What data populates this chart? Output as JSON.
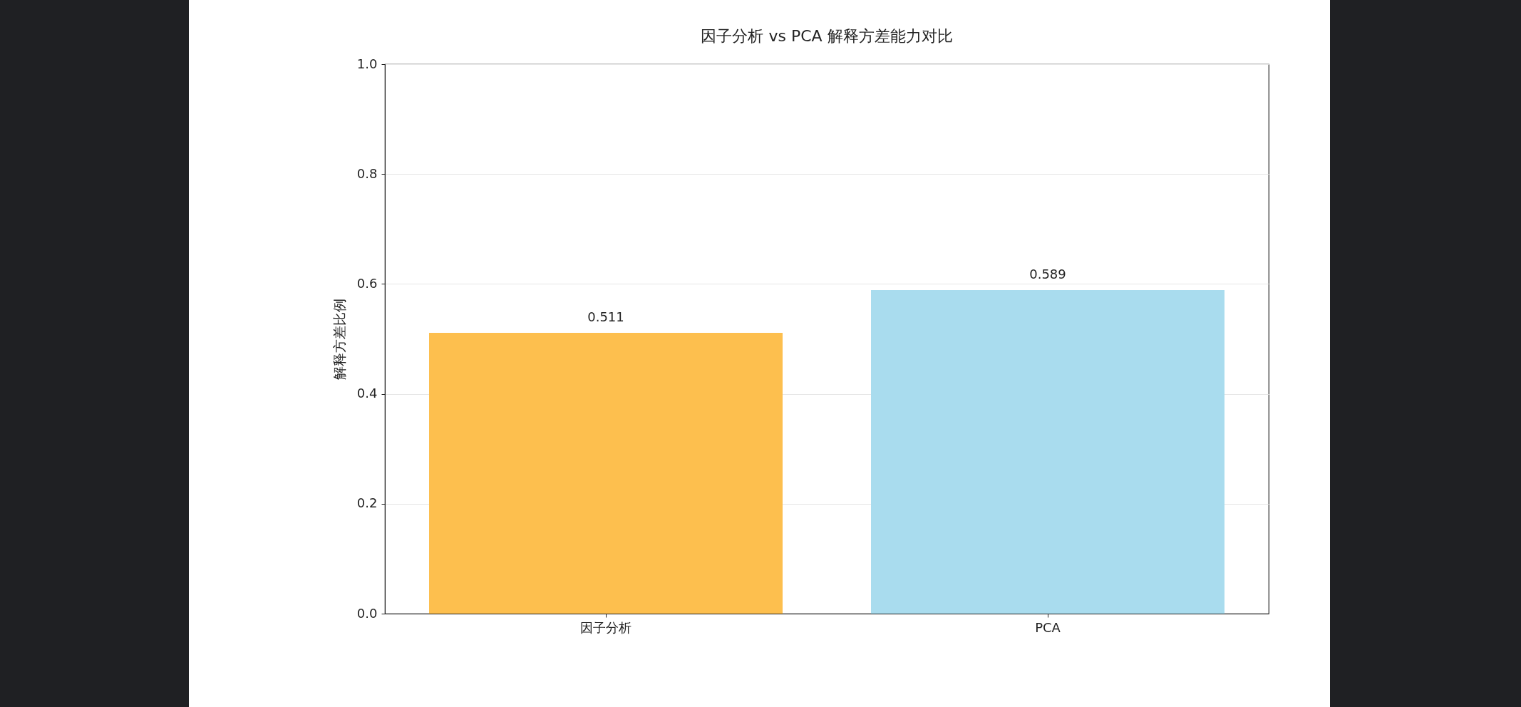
{
  "chart_data": {
    "type": "bar",
    "title": "因子分析 vs PCA 解释方差能力对比",
    "ylabel": "解释方差比例",
    "categories": [
      "因子分析",
      "PCA"
    ],
    "values": [
      0.511,
      0.589
    ],
    "colors": [
      "#fdbf4e",
      "#a9dcee"
    ],
    "ylim": [
      0,
      1
    ],
    "yticks": [
      {
        "value": 0,
        "label": "0.0"
      },
      {
        "value": 0.2,
        "label": "0.2"
      },
      {
        "value": 0.4,
        "label": "0.4"
      },
      {
        "value": 0.6,
        "label": "0.6"
      },
      {
        "value": 0.8,
        "label": "0.8"
      },
      {
        "value": 1,
        "label": "1.0"
      }
    ],
    "grid": "y",
    "data_labels": true
  }
}
